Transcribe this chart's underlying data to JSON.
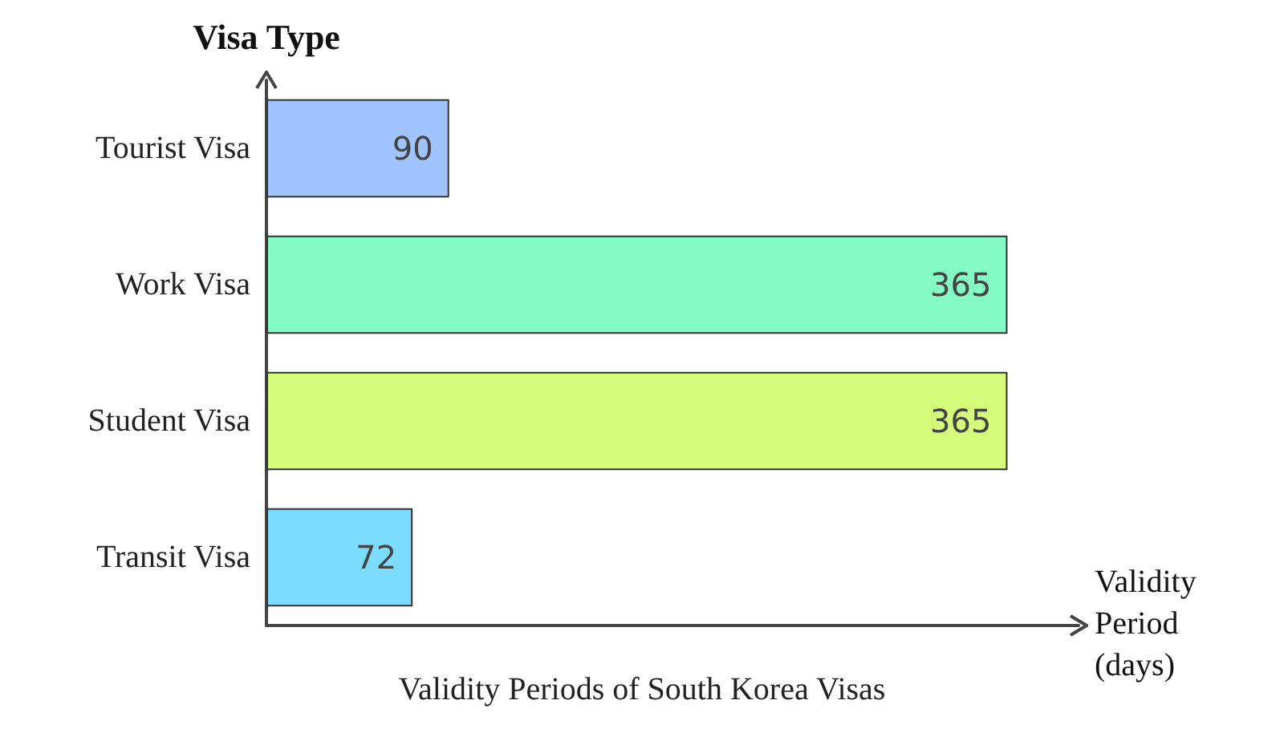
{
  "chart_data": {
    "type": "bar",
    "orientation": "horizontal",
    "title": "Validity Periods of South Korea Visas",
    "xlabel": "Validity Period (days)",
    "ylabel": "Visa Type",
    "categories": [
      "Tourist Visa",
      "Work Visa",
      "Student Visa",
      "Transit Visa"
    ],
    "values": [
      90,
      365,
      365,
      72
    ],
    "colors": [
      "#a0c4ff",
      "#84fbc4",
      "#d4fb79",
      "#7bdcff"
    ],
    "data_labels": true,
    "tick_labels": "y"
  }
}
